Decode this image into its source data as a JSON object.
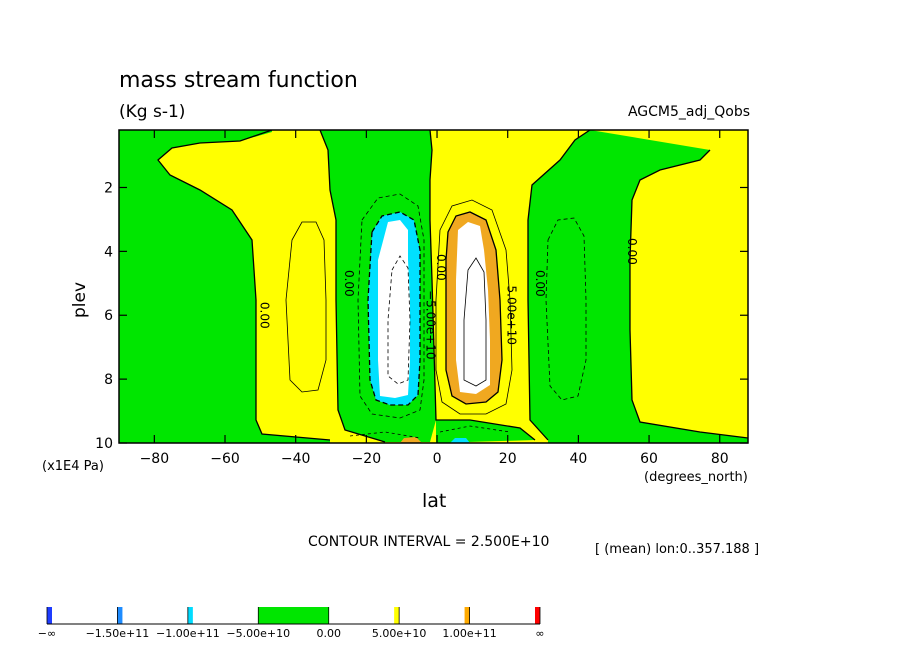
{
  "chart_data": {
    "type": "contour",
    "title": "mass stream function",
    "units": "(Kg s-1)",
    "dataset": "AGCM5_adj_Qobs",
    "xlabel": "lat",
    "xunit": "(degrees_north)",
    "ylabel": "plev",
    "yunit": "(x1E4 Pa)",
    "xlim": [
      -90,
      88
    ],
    "ylim": [
      10,
      0.2
    ],
    "x_ticks": [
      -80,
      -60,
      -40,
      -20,
      0,
      20,
      40,
      60,
      80
    ],
    "x_tick_labels": [
      "−80",
      "−60",
      "−40",
      "−20",
      "0",
      "20",
      "40",
      "60",
      "80"
    ],
    "y_ticks": [
      2,
      4,
      6,
      8,
      10
    ],
    "y_tick_labels": [
      "2",
      "4",
      "6",
      "8",
      "10"
    ],
    "contour_interval_text": "CONTOUR INTERVAL = 2.500E+10",
    "mean_text": "[ (mean) lon:0..357.188 ]",
    "contour_labels": [
      {
        "text": "0.00",
        "lat": -50,
        "plev": 6.0
      },
      {
        "text": "0.00",
        "lat": -26,
        "plev": 5.0
      },
      {
        "text": "0.00",
        "lat": 0,
        "plev": 4.5
      },
      {
        "text": "0.00",
        "lat": 28,
        "plev": 5.0
      },
      {
        "text": "0.00",
        "lat": 54,
        "plev": 4.0
      },
      {
        "text": "−5.00e+10",
        "lat": -3,
        "plev": 6.3
      },
      {
        "text": "5.00e+10",
        "lat": 20,
        "plev": 6.0
      }
    ],
    "colorbar": {
      "labels": [
        "−∞",
        "−1.50e+11",
        "−1.00e+11",
        "−5.00e+10",
        "0.00",
        "5.00e+10",
        "1.00e+11",
        "∞"
      ],
      "colors": [
        "#1e3cff",
        "#1e8cff",
        "#00dcff",
        "#00e600",
        "#ffff00",
        "#ffaa00",
        "#ff0000"
      ]
    },
    "colors": {
      "yellow": "#ffff00",
      "green": "#00e600",
      "orange": "#f0a820",
      "cyan": "#00e0ff",
      "white": "#ffffff"
    }
  }
}
